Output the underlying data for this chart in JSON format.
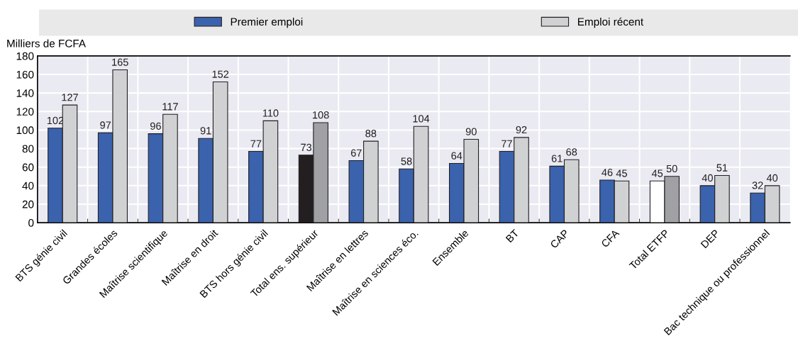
{
  "chart_data": {
    "type": "bar",
    "ylabel": "Milliers de FCFA",
    "categories": [
      "BTS génie civil",
      "Grandes écoles",
      "Maîtrise scientifique",
      "Maîtrise en droit",
      "BTS hors génie civil",
      "Total ens. supérieur",
      "Maîtrise en lettres",
      "Maîtrise en sciences éco.",
      "Ensemble",
      "BT",
      "CAP",
      "CFA",
      "Total ETFP",
      "DEP",
      "Bac technique ou professionnel"
    ],
    "series": [
      {
        "name": "Premier emploi",
        "color": "#3a62ad",
        "colors": [
          "#3a62ad",
          "#3a62ad",
          "#3a62ad",
          "#3a62ad",
          "#3a62ad",
          "#231f20",
          "#3a62ad",
          "#3a62ad",
          "#3a62ad",
          "#3a62ad",
          "#3a62ad",
          "#3a62ad",
          "#ffffff",
          "#3a62ad",
          "#3a62ad"
        ],
        "values": [
          102,
          97,
          96,
          91,
          77,
          73,
          67,
          58,
          64,
          77,
          61,
          46,
          45,
          40,
          32
        ]
      },
      {
        "name": "Emploi récent",
        "color": "#d0d1d3",
        "colors": [
          "#d0d1d3",
          "#d0d1d3",
          "#d0d1d3",
          "#d0d1d3",
          "#d0d1d3",
          "#a0a1a4",
          "#d0d1d3",
          "#d0d1d3",
          "#d0d1d3",
          "#d0d1d3",
          "#d0d1d3",
          "#d0d1d3",
          "#a0a1a4",
          "#d0d1d3",
          "#d0d1d3"
        ],
        "values": [
          127,
          165,
          117,
          152,
          110,
          108,
          88,
          104,
          90,
          92,
          68,
          45,
          50,
          51,
          40
        ]
      }
    ],
    "ylim": [
      0,
      180
    ],
    "yticks": [
      0,
      20,
      40,
      60,
      80,
      100,
      120,
      140,
      160,
      180
    ],
    "data_labels": true,
    "grid": true,
    "legend": "top"
  }
}
